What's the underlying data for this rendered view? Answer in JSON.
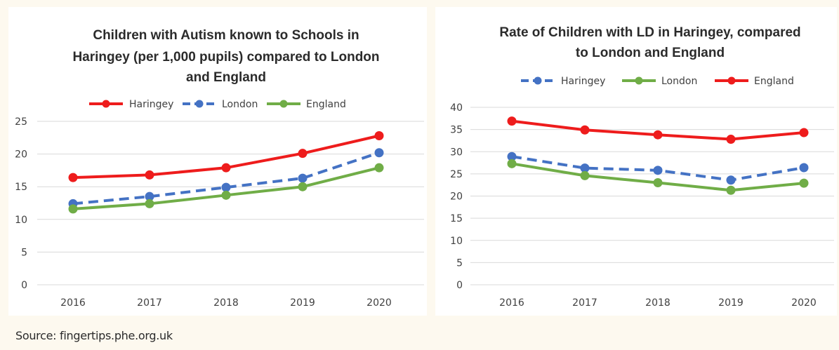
{
  "source_text": "Source: fingertips.phe.org.uk",
  "colors": {
    "Haringey_red": "#ee1c1c",
    "London_blue": "#4472c4",
    "England_green": "#70ad47",
    "background": "#fdf9ef"
  },
  "chart_data": [
    {
      "type": "line",
      "title_lines": [
        "Children with Autism known to Schools in",
        "Haringey (per 1,000 pupils) compared to London",
        "and England"
      ],
      "x": [
        "2016",
        "2017",
        "2018",
        "2019",
        "2020"
      ],
      "ylim": [
        0,
        25
      ],
      "yticks": [
        0,
        5,
        10,
        15,
        20,
        25
      ],
      "grid": true,
      "legend_position": "top",
      "series": [
        {
          "name": "Haringey",
          "color": "#ee1c1c",
          "dashed": false,
          "values": [
            16.4,
            16.8,
            17.9,
            20.1,
            22.8
          ]
        },
        {
          "name": "London",
          "color": "#4472c4",
          "dashed": true,
          "values": [
            12.4,
            13.5,
            14.9,
            16.3,
            20.2
          ]
        },
        {
          "name": "England",
          "color": "#70ad47",
          "dashed": false,
          "values": [
            11.6,
            12.4,
            13.7,
            15.0,
            17.9
          ]
        }
      ]
    },
    {
      "type": "line",
      "title_lines": [
        "Rate of Children with LD in Haringey, compared",
        "to London and England"
      ],
      "x": [
        "2016",
        "2017",
        "2018",
        "2019",
        "2020"
      ],
      "ylim": [
        0,
        40
      ],
      "yticks": [
        0,
        5,
        10,
        15,
        20,
        25,
        30,
        35,
        40
      ],
      "grid": true,
      "legend_position": "top",
      "series": [
        {
          "name": "Haringey",
          "color": "#4472c4",
          "dashed": true,
          "values": [
            28.9,
            26.3,
            25.8,
            23.6,
            26.4
          ]
        },
        {
          "name": "London",
          "color": "#70ad47",
          "dashed": false,
          "values": [
            27.3,
            24.6,
            23.0,
            21.3,
            22.9
          ]
        },
        {
          "name": "England",
          "color": "#ee1c1c",
          "dashed": false,
          "values": [
            36.9,
            34.9,
            33.8,
            32.8,
            34.3
          ]
        }
      ]
    }
  ]
}
